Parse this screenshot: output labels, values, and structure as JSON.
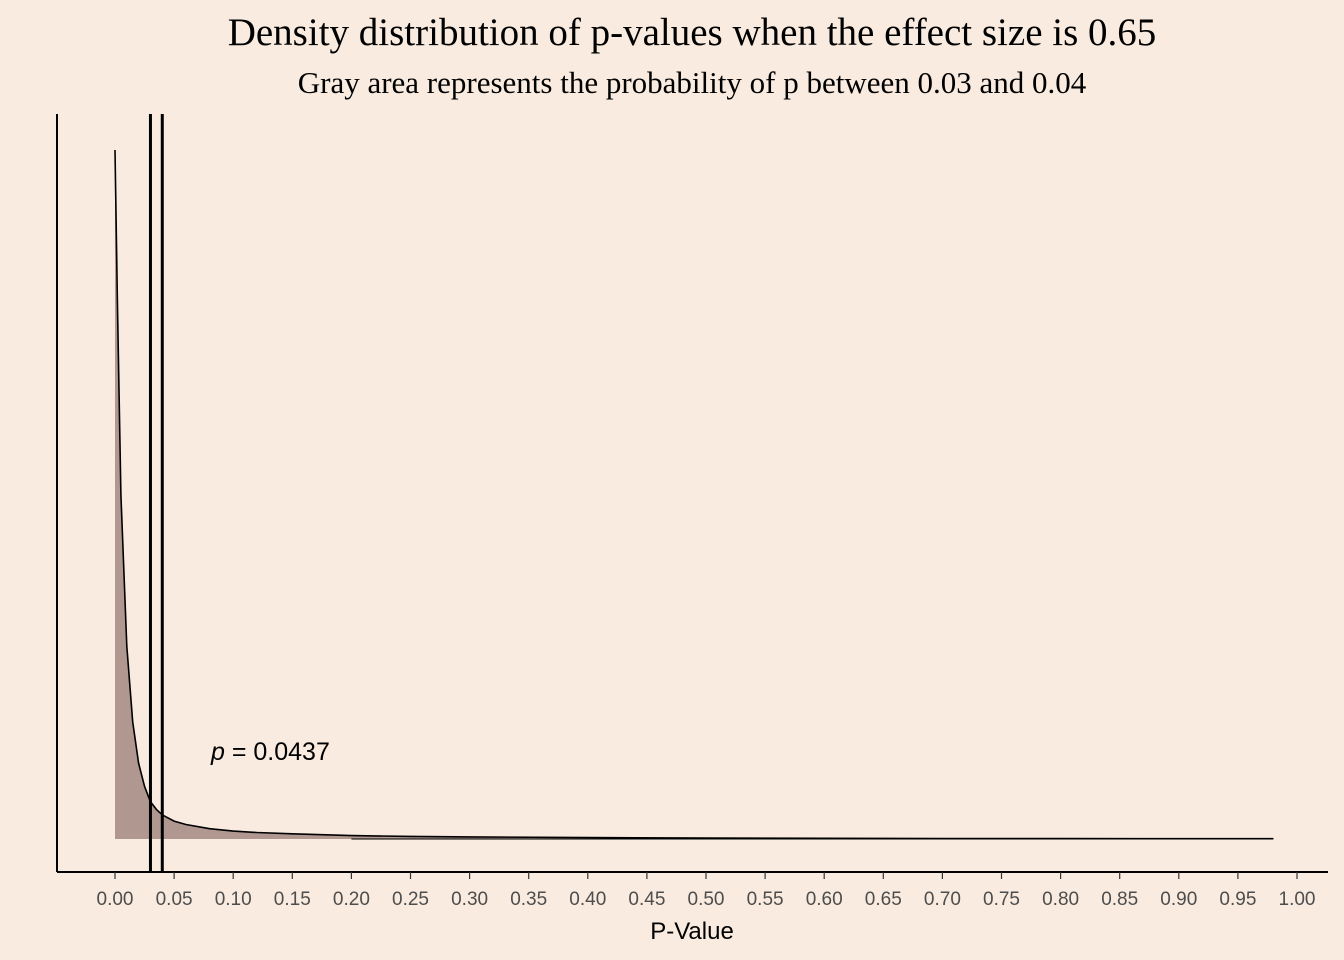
{
  "chart_data": {
    "type": "area",
    "title": "Density distribution of p-values when the effect size is 0.65",
    "subtitle": "Gray area represents the probability of p between 0.03 and 0.04",
    "xlabel": "P-Value",
    "ylabel": "",
    "xlim": [
      -0.05,
      1.03
    ],
    "x_ticks": [
      "0.00",
      "0.05",
      "0.10",
      "0.15",
      "0.20",
      "0.25",
      "0.30",
      "0.35",
      "0.40",
      "0.45",
      "0.50",
      "0.55",
      "0.60",
      "0.65",
      "0.70",
      "0.75",
      "0.80",
      "0.85",
      "0.90",
      "0.95",
      "1.00"
    ],
    "series": [
      {
        "x": [
          0.0,
          0.002,
          0.005,
          0.01,
          0.015,
          0.02,
          0.025,
          0.03,
          0.035,
          0.04,
          0.05,
          0.06,
          0.08,
          0.1,
          0.12,
          0.15,
          0.2,
          0.25,
          0.3,
          0.4,
          0.5,
          0.6,
          0.7,
          0.8,
          0.9,
          0.98
        ],
        "y": [
          100,
          78,
          50,
          28,
          17,
          11,
          7.6,
          5.4,
          4.3,
          3.5,
          2.6,
          2.1,
          1.5,
          1.15,
          0.95,
          0.75,
          0.5,
          0.38,
          0.3,
          0.2,
          0.14,
          0.1,
          0.07,
          0.055,
          0.045,
          0.04
        ]
      }
    ],
    "shaded_range": [
      0.03,
      0.04
    ],
    "vertical_lines": [
      0.03,
      0.04
    ],
    "fill_color": "#b09790",
    "annotation": {
      "italic": "p",
      "text": " = 0.0437"
    },
    "grid": false
  }
}
